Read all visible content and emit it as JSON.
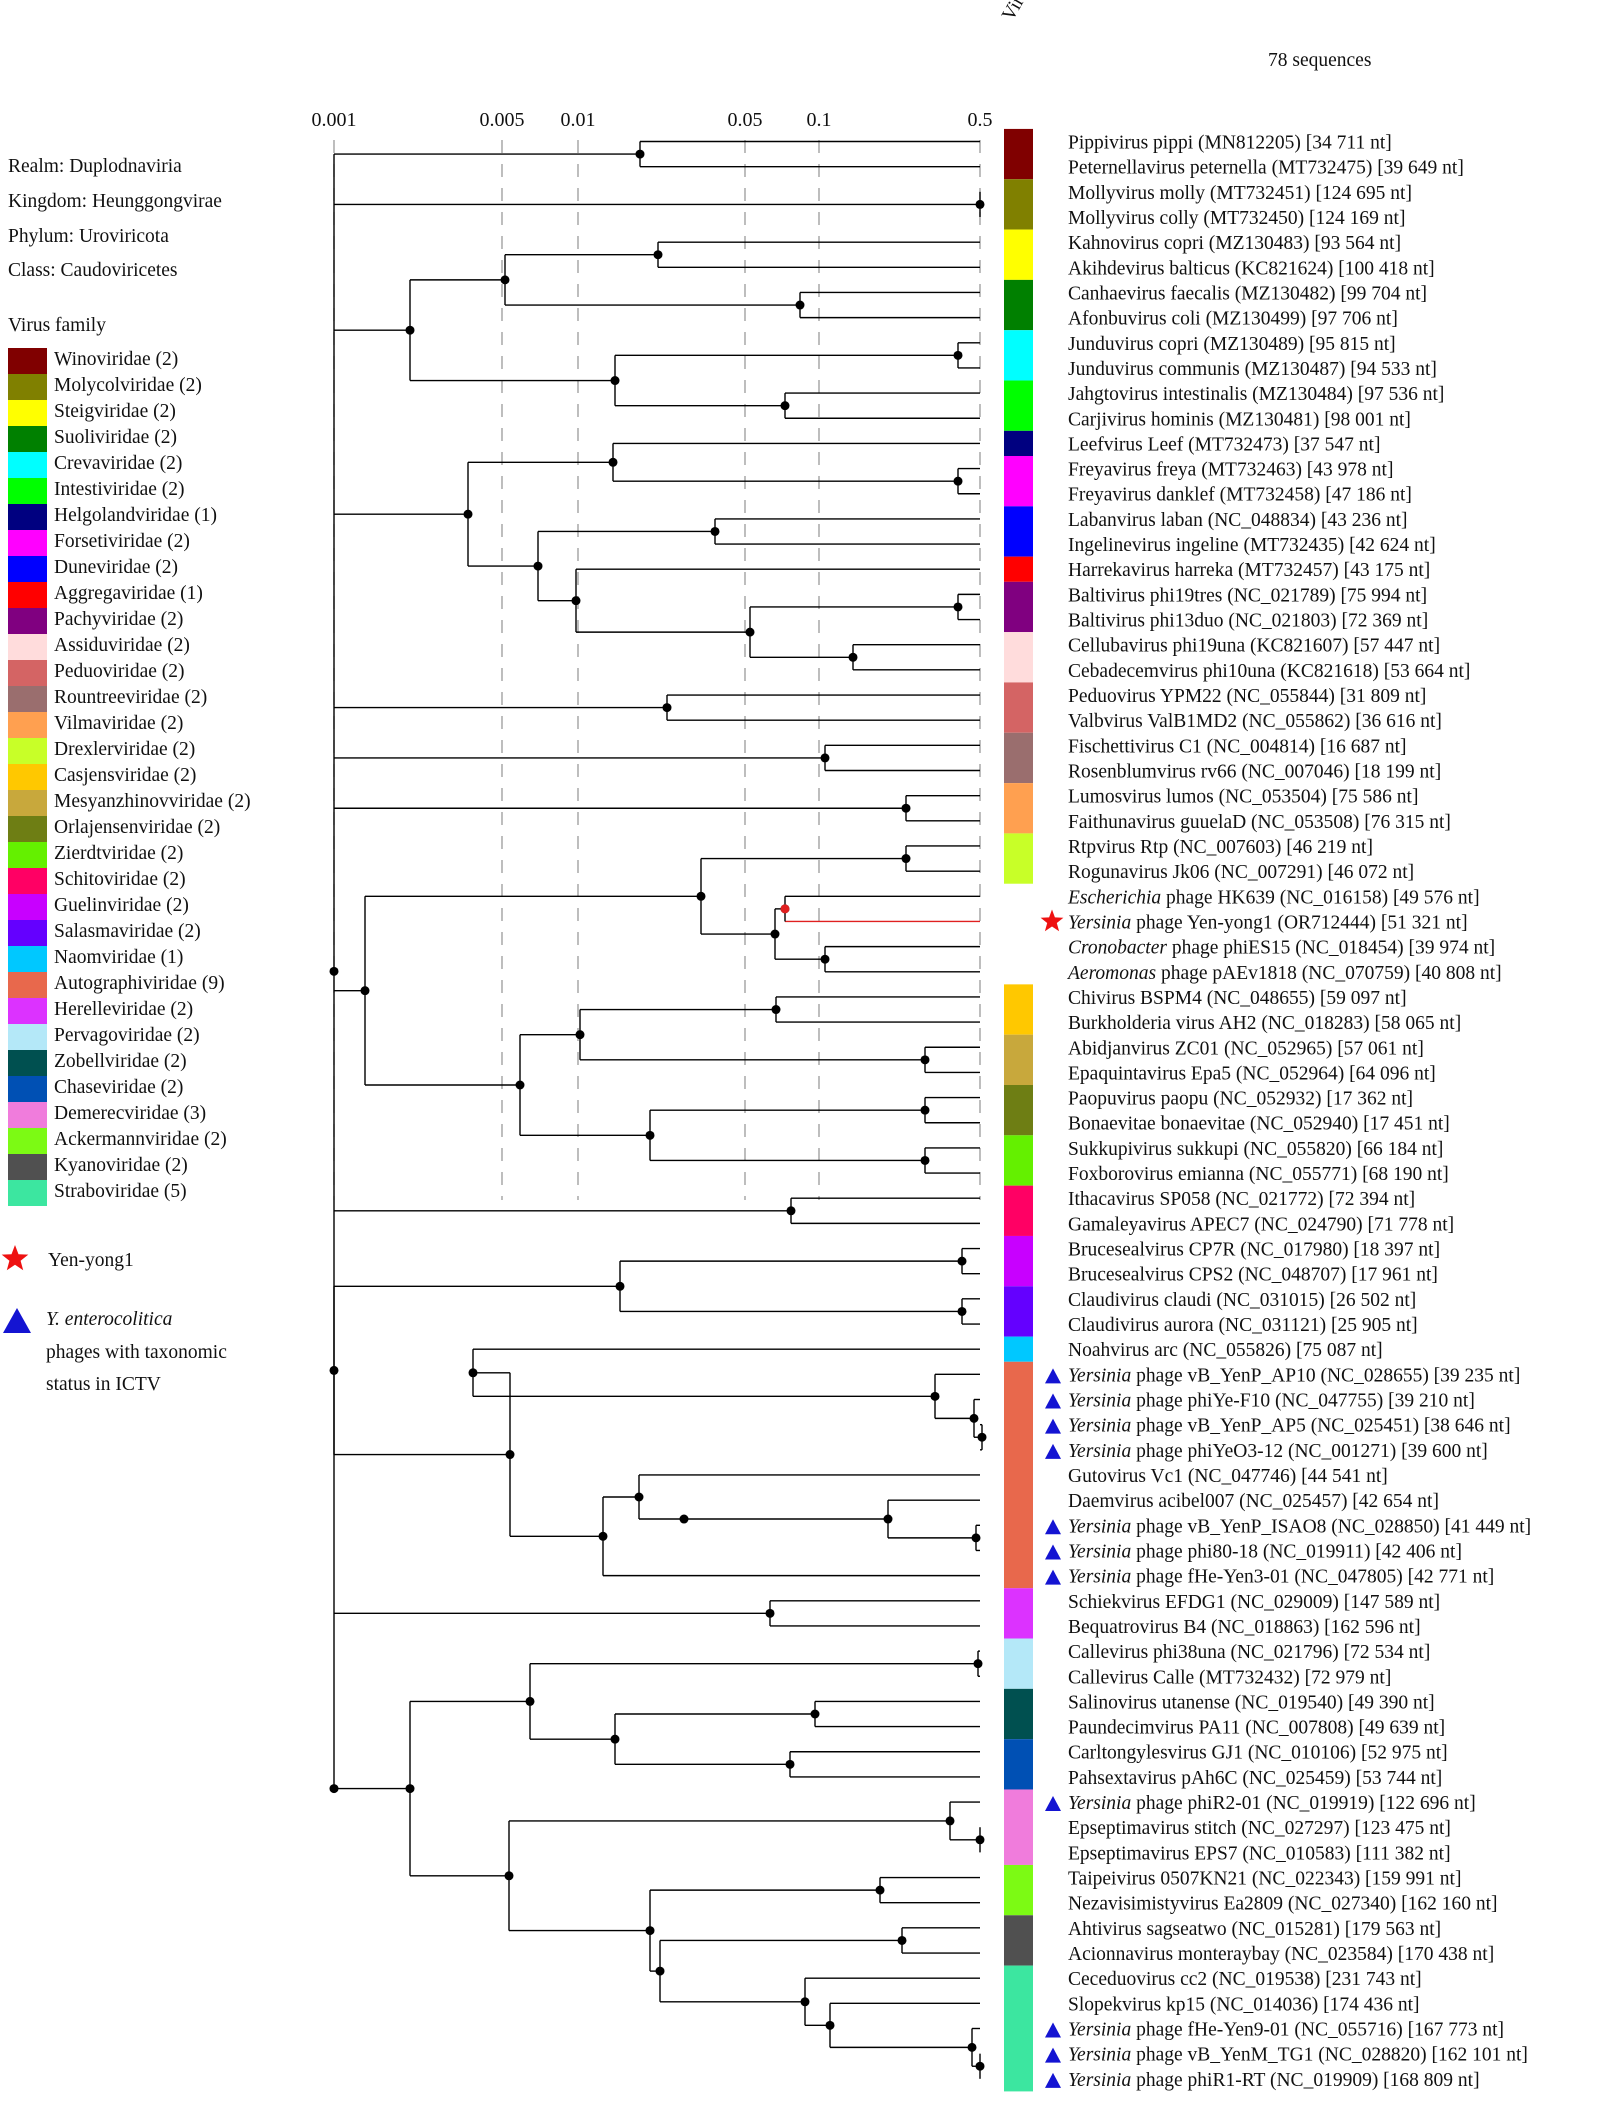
{
  "header": {
    "family_col": "Virus family",
    "count": "78 sequences"
  },
  "scale_ticks": [
    "0.001",
    "0.005",
    "0.01",
    "0.05",
    "0.1",
    "0.5"
  ],
  "taxonomy": [
    "Realm: Duplodnaviria",
    "Kingdom: Heunggongvirae",
    "Phylum: Uroviricota",
    "Class: Caudoviricetes"
  ],
  "legend": {
    "title": "Virus family",
    "items": [
      {
        "label": "Winoviridae (2)",
        "color": "#800000"
      },
      {
        "label": "Molycolviridae (2)",
        "color": "#808000"
      },
      {
        "label": "Steigviridae (2)",
        "color": "#ffff00"
      },
      {
        "label": "Suoliviridae (2)",
        "color": "#008000"
      },
      {
        "label": "Crevaviridae (2)",
        "color": "#00ffff"
      },
      {
        "label": "Intestiviridae (2)",
        "color": "#00ff00"
      },
      {
        "label": "Helgolandviridae (1)",
        "color": "#000080"
      },
      {
        "label": "Forsetiviridae (2)",
        "color": "#ff00ff"
      },
      {
        "label": "Duneviridae (2)",
        "color": "#0000ff"
      },
      {
        "label": "Aggregaviridae (1)",
        "color": "#ff0000"
      },
      {
        "label": "Pachyviridae (2)",
        "color": "#800080"
      },
      {
        "label": "Assiduviridae (2)",
        "color": "#ffdcdc"
      },
      {
        "label": "Peduoviridae (2)",
        "color": "#d46464"
      },
      {
        "label": "Rountreeviridae (2)",
        "color": "#9a6e6e"
      },
      {
        "label": "Vilmaviridae (2)",
        "color": "#ffa050"
      },
      {
        "label": "Drexlerviridae (2)",
        "color": "#c8ff28"
      },
      {
        "label": "Casjensviridae (2)",
        "color": "#ffc800"
      },
      {
        "label": "Mesyanzhinovviridae (2)",
        "color": "#c8a83c"
      },
      {
        "label": "Orlajensenviridae (2)",
        "color": "#6e7e14"
      },
      {
        "label": "Zierdtviridae (2)",
        "color": "#64f000"
      },
      {
        "label": "Schitoviridae (2)",
        "color": "#ff0064"
      },
      {
        "label": "Guelinviridae (2)",
        "color": "#c800ff"
      },
      {
        "label": "Salasmaviridae (2)",
        "color": "#6400ff"
      },
      {
        "label": "Naomviridae (1)",
        "color": "#00c8ff"
      },
      {
        "label": "Autographiviridae (9)",
        "color": "#e8684c"
      },
      {
        "label": "Herelleviridae (2)",
        "color": "#dc32ff"
      },
      {
        "label": "Pervagoviridae (2)",
        "color": "#b4e8f8"
      },
      {
        "label": "Zobellviridae (2)",
        "color": "#005050"
      },
      {
        "label": "Chaseviridae (2)",
        "color": "#0050b4"
      },
      {
        "label": "Demerecviridae (3)",
        "color": "#f07cdc"
      },
      {
        "label": "Ackermannviridae (2)",
        "color": "#7cfa14"
      },
      {
        "label": "Kyanoviridae (2)",
        "color": "#505050"
      },
      {
        "label": "Straboviridae (5)",
        "color": "#3ce6a0"
      }
    ]
  },
  "key": {
    "star_label": "Yen-yong1",
    "triangle_label_italic": "Y. enterocolitica",
    "triangle_label_1": "phages with taxonomic",
    "triangle_label_2": "status in ICTV"
  },
  "bars": [
    {
      "rows": [
        0,
        1
      ],
      "color": "#800000"
    },
    {
      "rows": [
        2,
        3
      ],
      "color": "#808000"
    },
    {
      "rows": [
        4,
        5
      ],
      "color": "#ffff00"
    },
    {
      "rows": [
        6,
        7
      ],
      "color": "#008000"
    },
    {
      "rows": [
        8,
        9
      ],
      "color": "#00ffff"
    },
    {
      "rows": [
        10,
        11
      ],
      "color": "#00ff00"
    },
    {
      "rows": [
        12,
        12
      ],
      "color": "#000080"
    },
    {
      "rows": [
        13,
        14
      ],
      "color": "#ff00ff"
    },
    {
      "rows": [
        15,
        16
      ],
      "color": "#0000ff"
    },
    {
      "rows": [
        17,
        17
      ],
      "color": "#ff0000"
    },
    {
      "rows": [
        18,
        19
      ],
      "color": "#800080"
    },
    {
      "rows": [
        20,
        21
      ],
      "color": "#ffdcdc"
    },
    {
      "rows": [
        22,
        23
      ],
      "color": "#d46464"
    },
    {
      "rows": [
        24,
        25
      ],
      "color": "#9a6e6e"
    },
    {
      "rows": [
        26,
        27
      ],
      "color": "#ffa050"
    },
    {
      "rows": [
        28,
        29
      ],
      "color": "#c8ff28"
    },
    {
      "rows": [
        34,
        35
      ],
      "color": "#ffc800"
    },
    {
      "rows": [
        36,
        37
      ],
      "color": "#c8a83c"
    },
    {
      "rows": [
        38,
        39
      ],
      "color": "#6e7e14"
    },
    {
      "rows": [
        40,
        41
      ],
      "color": "#64f000"
    },
    {
      "rows": [
        42,
        43
      ],
      "color": "#ff0064"
    },
    {
      "rows": [
        44,
        45
      ],
      "color": "#c800ff"
    },
    {
      "rows": [
        46,
        47
      ],
      "color": "#6400ff"
    },
    {
      "rows": [
        48,
        48
      ],
      "color": "#00c8ff"
    },
    {
      "rows": [
        49,
        57
      ],
      "color": "#e8684c"
    },
    {
      "rows": [
        58,
        59
      ],
      "color": "#dc32ff"
    },
    {
      "rows": [
        60,
        61
      ],
      "color": "#b4e8f8"
    },
    {
      "rows": [
        62,
        63
      ],
      "color": "#005050"
    },
    {
      "rows": [
        64,
        65
      ],
      "color": "#0050b4"
    },
    {
      "rows": [
        66,
        68
      ],
      "color": "#f07cdc"
    },
    {
      "rows": [
        69,
        70
      ],
      "color": "#7cfa14"
    },
    {
      "rows": [
        71,
        72
      ],
      "color": "#505050"
    },
    {
      "rows": [
        73,
        77
      ],
      "color": "#3ce6a0"
    }
  ],
  "leaves": [
    {
      "pre": "",
      "it": "",
      "post": "Pippivirus pippi (MN812205) [34 711 nt]"
    },
    {
      "pre": "",
      "it": "",
      "post": "Peternellavirus peternella (MT732475) [39 649 nt]"
    },
    {
      "pre": "",
      "it": "",
      "post": "Mollyvirus molly (MT732451) [124 695 nt]"
    },
    {
      "pre": "",
      "it": "",
      "post": "Mollyvirus colly (MT732450) [124 169 nt]"
    },
    {
      "pre": "",
      "it": "",
      "post": "Kahnovirus copri (MZ130483) [93 564 nt]"
    },
    {
      "pre": "",
      "it": "",
      "post": "Akihdevirus balticus (KC821624) [100 418 nt]"
    },
    {
      "pre": "",
      "it": "",
      "post": "Canhaevirus faecalis (MZ130482) [99 704 nt]"
    },
    {
      "pre": "",
      "it": "",
      "post": "Afonbuvirus coli (MZ130499) [97 706 nt]"
    },
    {
      "pre": "",
      "it": "",
      "post": "Junduvirus copri (MZ130489) [95 815 nt]"
    },
    {
      "pre": "",
      "it": "",
      "post": "Junduvirus communis (MZ130487) [94 533 nt]"
    },
    {
      "pre": "",
      "it": "",
      "post": "Jahgtovirus intestinalis (MZ130484) [97 536 nt]"
    },
    {
      "pre": "",
      "it": "",
      "post": "Carjivirus hominis (MZ130481) [98 001 nt]"
    },
    {
      "pre": "",
      "it": "",
      "post": "Leefvirus Leef (MT732473) [37 547 nt]"
    },
    {
      "pre": "",
      "it": "",
      "post": "Freyavirus freya (MT732463) [43 978 nt]"
    },
    {
      "pre": "",
      "it": "",
      "post": "Freyavirus danklef (MT732458) [47 186 nt]"
    },
    {
      "pre": "",
      "it": "",
      "post": "Labanvirus laban (NC_048834) [43 236 nt]"
    },
    {
      "pre": "",
      "it": "",
      "post": "Ingelinevirus ingeline (MT732435) [42 624 nt]"
    },
    {
      "pre": "",
      "it": "",
      "post": "Harrekavirus harreka (MT732457) [43 175 nt]"
    },
    {
      "pre": "",
      "it": "",
      "post": "Baltivirus phi19tres (NC_021789) [75 994 nt]"
    },
    {
      "pre": "",
      "it": "",
      "post": "Baltivirus phi13duo (NC_021803) [72 369 nt]"
    },
    {
      "pre": "",
      "it": "",
      "post": "Cellubavirus phi19una (KC821607) [57 447 nt]"
    },
    {
      "pre": "",
      "it": "",
      "post": "Cebadecemvirus phi10una (KC821618) [53 664 nt]"
    },
    {
      "pre": "",
      "it": "",
      "post": "Peduovirus YPM22 (NC_055844) [31 809 nt]"
    },
    {
      "pre": "",
      "it": "",
      "post": "Valbvirus ValB1MD2 (NC_055862) [36 616 nt]"
    },
    {
      "pre": "",
      "it": "",
      "post": "Fischettivirus C1 (NC_004814) [16 687 nt]"
    },
    {
      "pre": "",
      "it": "",
      "post": "Rosenblumvirus rv66 (NC_007046) [18 199 nt]"
    },
    {
      "pre": "",
      "it": "",
      "post": "Lumosvirus lumos (NC_053504) [75 586 nt]"
    },
    {
      "pre": "",
      "it": "",
      "post": "Faithunavirus guuelaD (NC_053508) [76 315 nt]"
    },
    {
      "pre": "",
      "it": "",
      "post": "Rtpvirus Rtp (NC_007603) [46 219 nt]"
    },
    {
      "pre": "",
      "it": "",
      "post": "Rogunavirus Jk06 (NC_007291) [46 072 nt]"
    },
    {
      "pre": "",
      "it": "Escherichia",
      "post": " phage HK639 (NC_016158) [49 576 nt]"
    },
    {
      "pre": "",
      "it": "Yersinia",
      "post": " phage Yen-yong1 (OR712444) [51 321 nt]",
      "star": true
    },
    {
      "pre": "",
      "it": "Cronobacter",
      "post": " phage phiES15 (NC_018454) [39 974 nt]"
    },
    {
      "pre": "",
      "it": "Aeromonas",
      "post": " phage pAEv1818 (NC_070759) [40 808 nt]"
    },
    {
      "pre": "",
      "it": "",
      "post": "Chivirus BSPM4 (NC_048655) [59 097 nt]"
    },
    {
      "pre": "",
      "it": "",
      "post": "Burkholderia virus AH2 (NC_018283) [58 065 nt]"
    },
    {
      "pre": "",
      "it": "",
      "post": "Abidjanvirus ZC01 (NC_052965) [57 061 nt]"
    },
    {
      "pre": "",
      "it": "",
      "post": "Epaquintavirus Epa5 (NC_052964) [64 096 nt]"
    },
    {
      "pre": "",
      "it": "",
      "post": "Paopuvirus paopu (NC_052932) [17 362 nt]"
    },
    {
      "pre": "",
      "it": "",
      "post": "Bonaevitae bonaevitae (NC_052940) [17 451 nt]"
    },
    {
      "pre": "",
      "it": "",
      "post": "Sukkupivirus sukkupi (NC_055820) [66 184 nt]"
    },
    {
      "pre": "",
      "it": "",
      "post": "Foxborovirus emianna (NC_055771) [68 190 nt]"
    },
    {
      "pre": "",
      "it": "",
      "post": "Ithacavirus SP058 (NC_021772) [72 394 nt]"
    },
    {
      "pre": "",
      "it": "",
      "post": "Gamaleyavirus APEC7 (NC_024790) [71 778 nt]"
    },
    {
      "pre": "",
      "it": "",
      "post": "Brucesealvirus CP7R (NC_017980) [18 397 nt]"
    },
    {
      "pre": "",
      "it": "",
      "post": "Brucesealvirus CPS2 (NC_048707) [17 961 nt]"
    },
    {
      "pre": "",
      "it": "",
      "post": "Claudivirus claudi (NC_031015) [26 502 nt]"
    },
    {
      "pre": "",
      "it": "",
      "post": "Claudivirus aurora (NC_031121) [25 905 nt]"
    },
    {
      "pre": "",
      "it": "",
      "post": "Noahvirus arc (NC_055826) [75 087 nt]"
    },
    {
      "pre": "",
      "it": "Yersinia",
      "post": " phage vB_YenP_AP10 (NC_028655) [39 235 nt]",
      "tri": true
    },
    {
      "pre": "",
      "it": "Yersinia",
      "post": " phage phiYe-F10 (NC_047755) [39 210 nt]",
      "tri": true
    },
    {
      "pre": "",
      "it": "Yersinia",
      "post": " phage vB_YenP_AP5 (NC_025451) [38 646 nt]",
      "tri": true
    },
    {
      "pre": "",
      "it": "Yersinia",
      "post": " phage phiYeO3-12 (NC_001271) [39 600 nt]",
      "tri": true
    },
    {
      "pre": "",
      "it": "",
      "post": "Gutovirus Vc1 (NC_047746) [44 541 nt]"
    },
    {
      "pre": "",
      "it": "",
      "post": "Daemvirus acibel007 (NC_025457) [42 654 nt]"
    },
    {
      "pre": "",
      "it": "Yersinia",
      "post": " phage vB_YenP_ISAO8 (NC_028850) [41 449 nt]",
      "tri": true
    },
    {
      "pre": "",
      "it": "Yersinia",
      "post": " phage phi80-18 (NC_019911) [42 406 nt]",
      "tri": true
    },
    {
      "pre": "",
      "it": "Yersinia",
      "post": " phage fHe-Yen3-01 (NC_047805) [42 771 nt]",
      "tri": true
    },
    {
      "pre": "",
      "it": "",
      "post": "Schiekvirus EFDG1 (NC_029009) [147 589 nt]"
    },
    {
      "pre": "",
      "it": "",
      "post": "Bequatrovirus B4 (NC_018863) [162 596 nt]"
    },
    {
      "pre": "",
      "it": "",
      "post": "Callevirus phi38una (NC_021796) [72 534 nt]"
    },
    {
      "pre": "",
      "it": "",
      "post": "Callevirus Calle (MT732432) [72 979 nt]"
    },
    {
      "pre": "",
      "it": "",
      "post": "Salinovirus utanense (NC_019540) [49 390 nt]"
    },
    {
      "pre": "",
      "it": "",
      "post": "Paundecimvirus PA11 (NC_007808) [49 639 nt]"
    },
    {
      "pre": "",
      "it": "",
      "post": "Carltongylesvirus GJ1 (NC_010106) [52 975 nt]"
    },
    {
      "pre": "",
      "it": "",
      "post": "Pahsextavirus pAh6C (NC_025459) [53 744 nt]"
    },
    {
      "pre": "",
      "it": "Yersinia",
      "post": " phage phiR2-01 (NC_019919) [122 696 nt]",
      "tri": true
    },
    {
      "pre": "",
      "it": "",
      "post": "Epseptimavirus stitch (NC_027297) [123 475 nt]"
    },
    {
      "pre": "",
      "it": "",
      "post": "Epseptimavirus EPS7 (NC_010583) [111 382 nt]"
    },
    {
      "pre": "",
      "it": "",
      "post": "Taipeivirus 0507KN21 (NC_022343) [159 991 nt]"
    },
    {
      "pre": "",
      "it": "",
      "post": "Nezavisimistyvirus Ea2809 (NC_027340) [162 160 nt]"
    },
    {
      "pre": "",
      "it": "",
      "post": "Ahtivirus sagseatwo (NC_015281) [179 563 nt]"
    },
    {
      "pre": "",
      "it": "",
      "post": "Acionnavirus monteraybay (NC_023584) [170 438 nt]"
    },
    {
      "pre": "",
      "it": "",
      "post": "Ceceduovirus cc2 (NC_019538) [231 743 nt]"
    },
    {
      "pre": "",
      "it": "",
      "post": "Slopekvirus kp15 (NC_014036) [174 436 nt]"
    },
    {
      "pre": "",
      "it": "Yersinia",
      "post": " phage fHe-Yen9-01 (NC_055716) [167 773 nt]",
      "tri": true
    },
    {
      "pre": "",
      "it": "Yersinia",
      "post": " phage vB_YenM_TG1 (NC_028820) [162 101 nt]",
      "tri": true
    },
    {
      "pre": "",
      "it": "Yersinia",
      "post": " phage phiR1-RT (NC_019909) [168 809 nt]",
      "tri": true
    }
  ]
}
